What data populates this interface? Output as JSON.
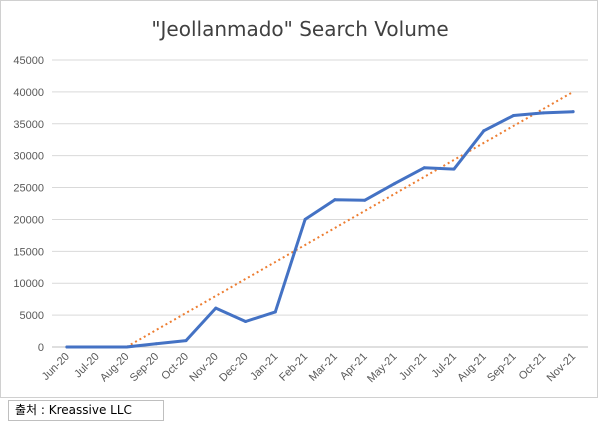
{
  "source_note": "출처 : Kreassive LLC",
  "chart_data": {
    "type": "line",
    "title": "\"Jeollanmado\" Search Volume",
    "xlabel": "",
    "ylabel": "",
    "ylim": [
      0,
      45000
    ],
    "yticks": [
      0,
      5000,
      10000,
      15000,
      20000,
      25000,
      30000,
      35000,
      40000,
      45000
    ],
    "grid": true,
    "categories": [
      "Jun-20",
      "Jul-20",
      "Aug-20",
      "Sep-20",
      "Oct-20",
      "Nov-20",
      "Dec-20",
      "Jan-21",
      "Feb-21",
      "Mar-21",
      "Apr-21",
      "May-21",
      "Jun-21",
      "Jul-21",
      "Aug-21",
      "Sep-21",
      "Oct-21",
      "Nov-21"
    ],
    "series": [
      {
        "values": [
          0,
          0,
          0,
          500,
          1000,
          6100,
          4000,
          5500,
          20000,
          23100,
          23000,
          25600,
          28100,
          27900,
          33900,
          36300,
          36700,
          36900
        ],
        "color": "#4472C4",
        "style": "solid"
      }
    ],
    "trendline": {
      "type": "linear",
      "color": "#ED7D31",
      "style": "dotted",
      "from_category": "Aug-20",
      "to_category": "Nov-21",
      "start_value": 0,
      "end_value": 40000
    }
  }
}
